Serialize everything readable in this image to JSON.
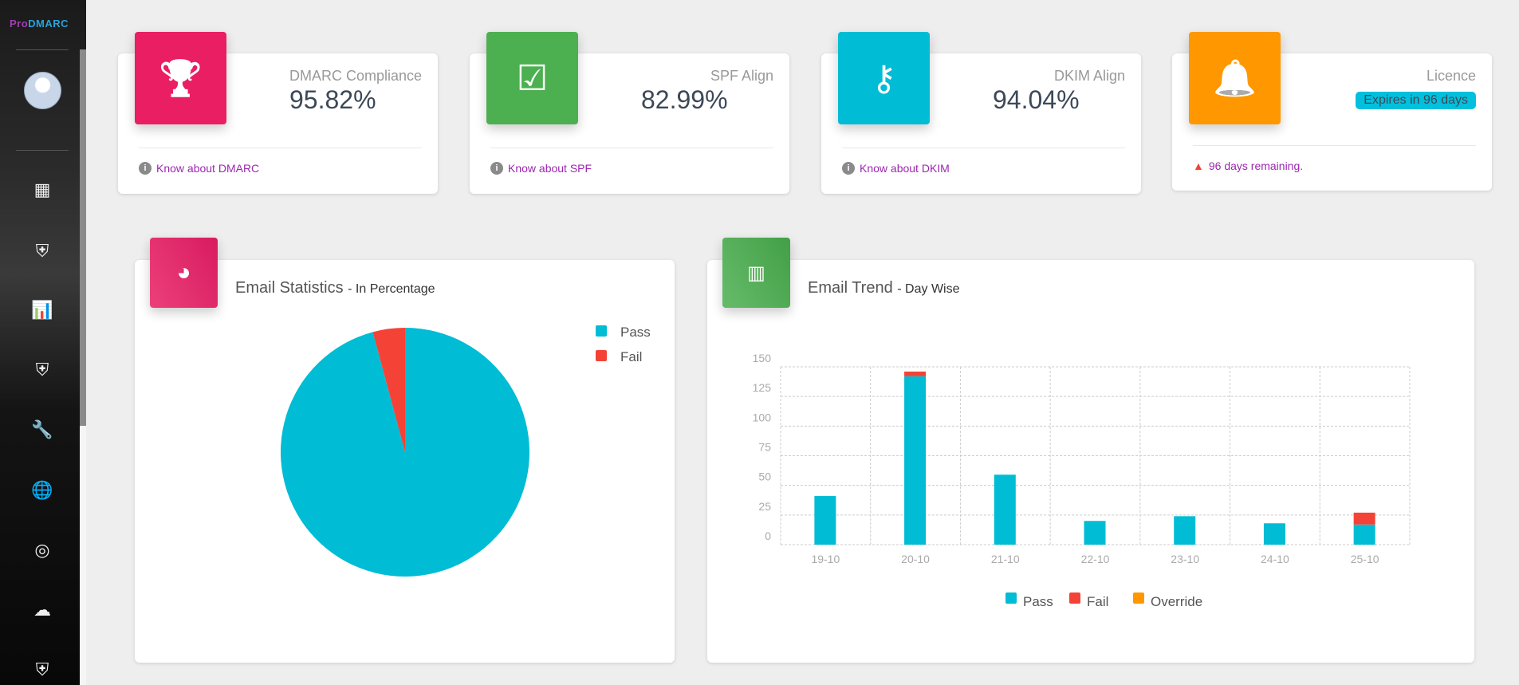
{
  "app": {
    "logo_part1": "Pro",
    "logo_part2": "DMARC"
  },
  "sidebar": {
    "items": [
      {
        "icon": "dashboard-icon",
        "glyph": "▦"
      },
      {
        "icon": "shield-icon",
        "glyph": "⛨"
      },
      {
        "icon": "report-chart-icon",
        "glyph": "📊"
      },
      {
        "icon": "shield-user-icon",
        "glyph": "⛨"
      },
      {
        "icon": "wrench-icon",
        "glyph": "🔧"
      },
      {
        "icon": "globe-icon",
        "glyph": "🌐"
      },
      {
        "icon": "fingerprint-icon",
        "glyph": "◎"
      },
      {
        "icon": "cloud-upload-icon",
        "glyph": "☁"
      },
      {
        "icon": "shield-icon",
        "glyph": "⛨"
      }
    ]
  },
  "stats": [
    {
      "title": "DMARC Compliance",
      "value": "95.82%",
      "link": "Know about DMARC",
      "color": "#e91e63",
      "icon": "trophy-icon",
      "glyph": "🏆"
    },
    {
      "title": "SPF Align",
      "value": "82.99%",
      "link": "Know about SPF",
      "color": "#4caf50",
      "icon": "checkbox-icon",
      "glyph": "☑"
    },
    {
      "title": "DKIM Align",
      "value": "94.04%",
      "link": "Know about DKIM",
      "color": "#00bcd4",
      "icon": "key-icon",
      "glyph": "⚷"
    },
    {
      "title": "Licence",
      "badge": "Expires in 96 days",
      "link": "96 days remaining.",
      "color": "#ff9800",
      "icon": "bell-icon",
      "glyph": "🔔"
    }
  ],
  "email_stats": {
    "title": "Email Statistics",
    "subtitle": "- In Percentage"
  },
  "email_trend": {
    "title": "Email Trend",
    "subtitle": "- Day Wise"
  },
  "chart_data": [
    {
      "type": "pie",
      "series": [
        {
          "name": "Pass",
          "value": 95.82,
          "color": "#00bcd4"
        },
        {
          "name": "Fail",
          "value": 4.18,
          "color": "#f44336"
        }
      ],
      "legend": "top-right"
    },
    {
      "type": "bar",
      "stacked": true,
      "categories": [
        "19-10",
        "20-10",
        "21-10",
        "22-10",
        "23-10",
        "24-10",
        "25-10"
      ],
      "series": [
        {
          "name": "Pass",
          "color": "#00bcd4",
          "values": [
            41,
            142,
            59,
            20,
            24,
            18,
            17
          ]
        },
        {
          "name": "Fail",
          "color": "#f44336",
          "values": [
            0,
            4,
            0,
            0,
            0,
            0,
            10
          ]
        },
        {
          "name": "Override",
          "color": "#ff9800",
          "values": [
            0,
            0,
            0,
            0,
            0,
            0,
            0
          ]
        }
      ],
      "ylim": [
        0,
        150
      ],
      "yticks": [
        "0",
        "25",
        "50",
        "75",
        "100",
        "125",
        "150"
      ],
      "grid": true,
      "legend": "bottom"
    }
  ]
}
